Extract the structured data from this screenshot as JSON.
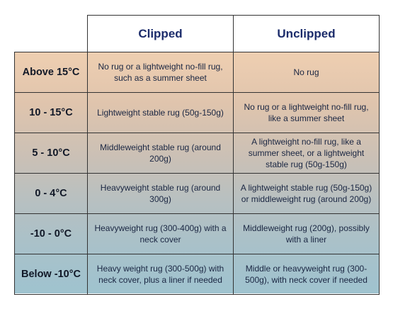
{
  "table": {
    "columns": [
      "Clipped",
      "Unclipped"
    ],
    "rows": [
      {
        "temp": "Above 15°C",
        "clipped": "No rug or a lightweight no-fill rug, such as a summer sheet",
        "unclipped": "No rug"
      },
      {
        "temp": "10 - 15°C",
        "clipped": "Lightweight stable rug (50g-150g)",
        "unclipped": "No rug or a lightweight no-fill rug, like a summer sheet"
      },
      {
        "temp": "5 - 10°C",
        "clipped": "Middleweight stable rug (around 200g)",
        "unclipped": "A lightweight no-fill rug, like a summer sheet, or a lightweight stable rug (50g-150g)"
      },
      {
        "temp": "0 - 4°C",
        "clipped": "Heavyweight stable rug (around 300g)",
        "unclipped": "A lightweight stable rug (50g-150g) or middleweight rug (around 200g)"
      },
      {
        "temp": "-10 - 0°C",
        "clipped": "Heavyweight rug (300-400g) with a neck cover",
        "unclipped": "Middleweight rug (200g), possibly with a liner"
      },
      {
        "temp": "Below -10°C",
        "clipped": "Heavy weight rug (300-500g) with neck cover, plus a liner if needed",
        "unclipped": "Middle or heavyweight rug (300-500g), with neck cover if needed"
      }
    ]
  },
  "colors": {
    "header_text": "#1c2c6b",
    "gradient_top": "#efcfb1",
    "gradient_bottom": "#9fc3cf",
    "border": "#333333"
  }
}
